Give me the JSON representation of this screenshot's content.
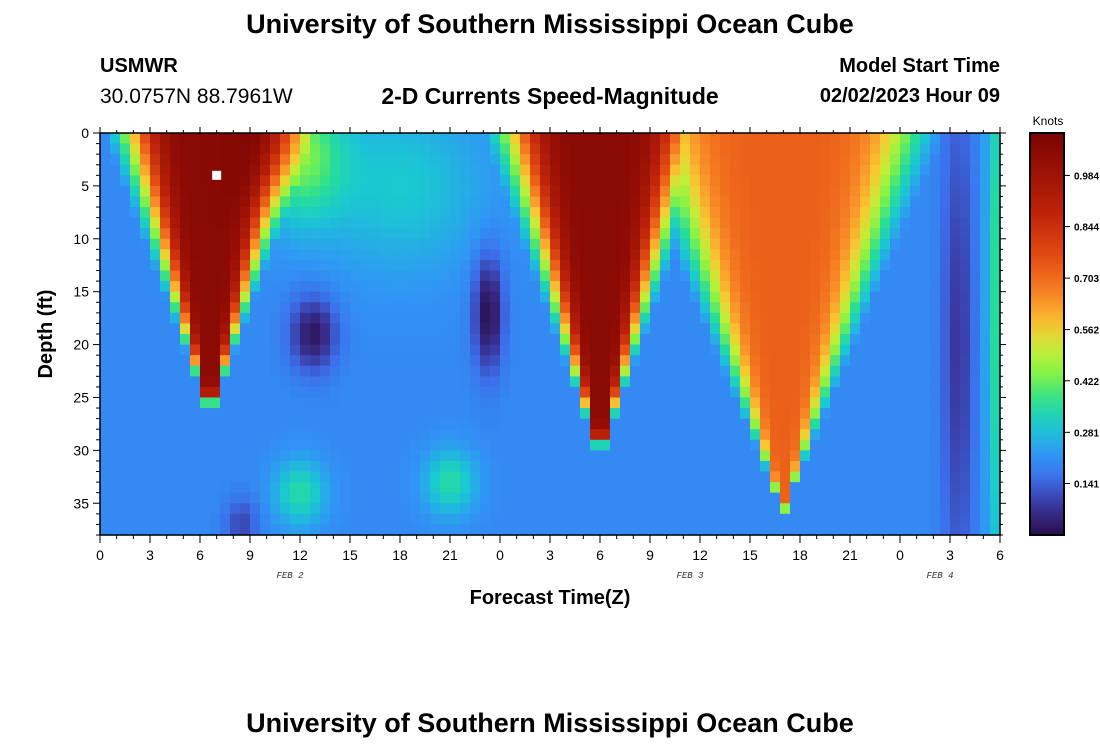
{
  "header": {
    "title": "University of Southern Mississippi Ocean Cube",
    "station_id": "USMWR",
    "station_coords": "30.0757N  88.7961W",
    "subtitle": "2-D Currents Speed-Magnitude",
    "model_start_label": "Model Start Time",
    "model_start_value": "02/02/2023 Hour 09"
  },
  "footer": {
    "title": "University of Southern Mississippi Ocean Cube"
  },
  "chart_data": {
    "type": "heatmap",
    "title": "2-D Currents Speed-Magnitude",
    "xlabel": "Forecast Time(Z)",
    "ylabel": "Depth (ft)",
    "x_range_hours": [
      0,
      54
    ],
    "y_range_ft": [
      0,
      38
    ],
    "x_ticks": [
      {
        "h": 0,
        "label": "0"
      },
      {
        "h": 3,
        "label": "3"
      },
      {
        "h": 6,
        "label": "6"
      },
      {
        "h": 9,
        "label": "9"
      },
      {
        "h": 12,
        "label": "12"
      },
      {
        "h": 15,
        "label": "15"
      },
      {
        "h": 18,
        "label": "18"
      },
      {
        "h": 21,
        "label": "21"
      },
      {
        "h": 24,
        "label": "0"
      },
      {
        "h": 27,
        "label": "3"
      },
      {
        "h": 30,
        "label": "6"
      },
      {
        "h": 33,
        "label": "9"
      },
      {
        "h": 36,
        "label": "12"
      },
      {
        "h": 39,
        "label": "15"
      },
      {
        "h": 42,
        "label": "18"
      },
      {
        "h": 45,
        "label": "21"
      },
      {
        "h": 48,
        "label": "0"
      },
      {
        "h": 51,
        "label": "3"
      },
      {
        "h": 54,
        "label": "6"
      }
    ],
    "y_ticks": [
      0,
      5,
      10,
      15,
      20,
      25,
      30,
      35
    ],
    "date_labels": [
      {
        "h": 12,
        "label": "FEB 2"
      },
      {
        "h": 36,
        "label": "FEB 3"
      },
      {
        "h": 51,
        "label": "FEB 4"
      }
    ],
    "colorbar": {
      "units": "Knots",
      "min": 0.0,
      "max": 1.1,
      "labels": [
        {
          "value": 0.141,
          "label": "0.141"
        },
        {
          "value": 0.281,
          "label": "0.281"
        },
        {
          "value": 0.422,
          "label": "0.422"
        },
        {
          "value": 0.562,
          "label": "0.562"
        },
        {
          "value": 0.703,
          "label": "0.703"
        },
        {
          "value": 0.844,
          "label": "0.844"
        },
        {
          "value": 0.984,
          "label": "0.984"
        }
      ]
    },
    "marker": {
      "h": 7,
      "depth_ft": 4
    },
    "speed_field": {
      "background_knots": 0.2,
      "features": [
        {
          "kind": "surface_jet",
          "t_center": 6.6,
          "top_halfwidth_h": 4.8,
          "bottom_depth_ft": 27,
          "peak_knots": 1.05
        },
        {
          "kind": "surface_jet",
          "t_center": 30.0,
          "top_halfwidth_h": 5.3,
          "bottom_depth_ft": 31,
          "peak_knots": 1.05
        },
        {
          "kind": "surface_jet",
          "t_center": 41.0,
          "top_halfwidth_h": 8.0,
          "bottom_depth_ft": 36,
          "peak_knots": 0.72
        },
        {
          "kind": "blob",
          "t": 12.8,
          "depth_ft": 19,
          "t_sigma": 1.4,
          "d_sigma": 3.5,
          "delta_knots": -0.18
        },
        {
          "kind": "blob",
          "t": 23.3,
          "depth_ft": 17,
          "t_sigma": 0.9,
          "d_sigma": 5.5,
          "delta_knots": -0.2
        },
        {
          "kind": "blob",
          "t": 51.5,
          "depth_ft": 20,
          "t_sigma": 1.0,
          "d_sigma": 25,
          "delta_knots": -0.12
        },
        {
          "kind": "blob",
          "t": 8.5,
          "depth_ft": 37,
          "t_sigma": 1.0,
          "d_sigma": 2.5,
          "delta_knots": -0.1
        },
        {
          "kind": "blob",
          "t": 12.0,
          "depth_ft": 2,
          "t_sigma": 2.5,
          "d_sigma": 6,
          "delta_knots": 0.22
        },
        {
          "kind": "blob",
          "t": 18.0,
          "depth_ft": 5,
          "t_sigma": 5.0,
          "d_sigma": 8,
          "delta_knots": 0.1
        },
        {
          "kind": "blob",
          "t": 12.0,
          "depth_ft": 34,
          "t_sigma": 1.5,
          "d_sigma": 3,
          "delta_knots": 0.15
        },
        {
          "kind": "blob",
          "t": 21.0,
          "depth_ft": 33,
          "t_sigma": 1.5,
          "d_sigma": 3,
          "delta_knots": 0.15
        },
        {
          "kind": "blob",
          "t": 54.0,
          "depth_ft": 15,
          "t_sigma": 0.8,
          "d_sigma": 30,
          "delta_knots": 0.18
        }
      ]
    }
  }
}
